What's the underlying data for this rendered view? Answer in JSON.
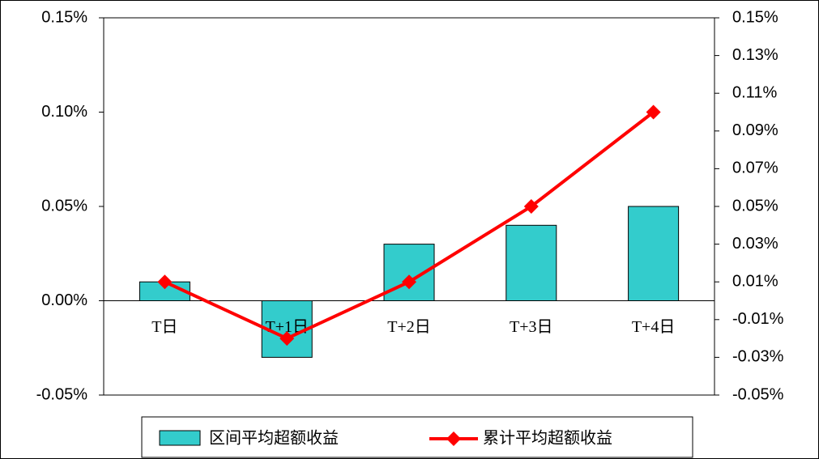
{
  "chart_data": {
    "type": "bar",
    "categories": [
      "T日",
      "T+1日",
      "T+2日",
      "T+3日",
      "T+4日"
    ],
    "series": [
      {
        "name": "区间平均超额收益",
        "type": "bar",
        "color": "#33cccc",
        "values": [
          0.01,
          -0.03,
          0.03,
          0.04,
          0.05
        ]
      },
      {
        "name": "累计平均超额收益",
        "type": "line",
        "axis": "y2",
        "color": "#ff0000",
        "values": [
          0.01,
          -0.02,
          0.01,
          0.05,
          0.1
        ]
      }
    ],
    "ylim": [
      -0.05,
      0.15
    ],
    "yticks": [
      {
        "value": -0.05,
        "label": "-0.05%"
      },
      {
        "value": 0,
        "label": "0.00%"
      },
      {
        "value": 0.05,
        "label": "0.05%"
      },
      {
        "value": 0.1,
        "label": "0.10%"
      },
      {
        "value": 0.15,
        "label": "0.15%"
      }
    ],
    "y2lim": [
      -0.05,
      0.15
    ],
    "y2ticks": [
      {
        "value": -0.05,
        "label": "-0.05%"
      },
      {
        "value": -0.03,
        "label": "-0.03%"
      },
      {
        "value": -0.01,
        "label": "-0.01%"
      },
      {
        "value": 0.01,
        "label": "0.01%"
      },
      {
        "value": 0.03,
        "label": "0.03%"
      },
      {
        "value": 0.05,
        "label": "0.05%"
      },
      {
        "value": 0.07,
        "label": "0.07%"
      },
      {
        "value": 0.09,
        "label": "0.09%"
      },
      {
        "value": 0.11,
        "label": "0.11%"
      },
      {
        "value": 0.13,
        "label": "0.13%"
      },
      {
        "value": 0.15,
        "label": "0.15%"
      }
    ],
    "grid": false,
    "legend": "bottom"
  }
}
